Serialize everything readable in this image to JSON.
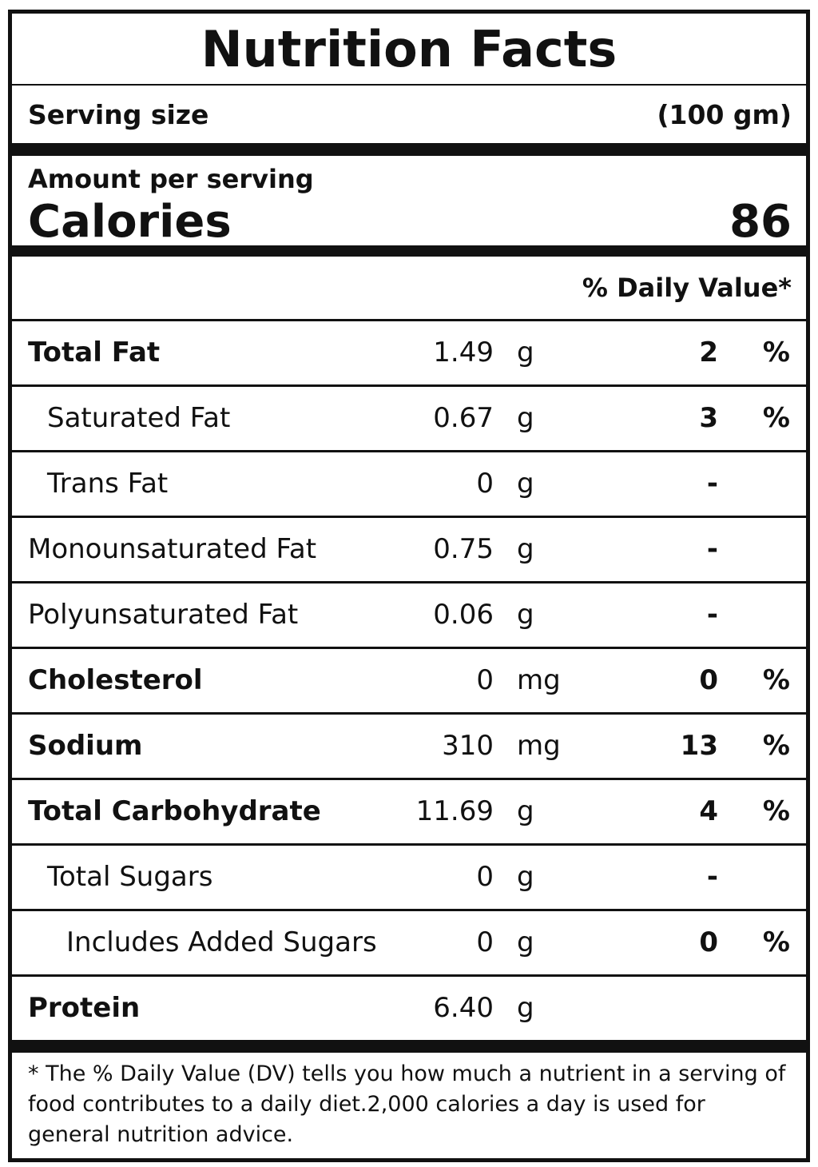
{
  "title": "Nutrition Facts",
  "serving": {
    "label": "Serving size",
    "value": "(100 gm)"
  },
  "amount_per_serving": "Amount per serving",
  "calories": {
    "label": "Calories",
    "value": "86"
  },
  "daily_value_header": "% Daily Value*",
  "nutrients": [
    {
      "name": "Total Fat",
      "amount": "1.49",
      "unit": "g",
      "dv": "2",
      "pct": "%"
    },
    {
      "name": "Saturated Fat",
      "amount": "0.67",
      "unit": "g",
      "dv": "3",
      "pct": "%"
    },
    {
      "name": "Trans Fat",
      "amount": "0",
      "unit": "g",
      "dv": "-",
      "pct": ""
    },
    {
      "name": "Monounsaturated Fat",
      "amount": "0.75",
      "unit": "g",
      "dv": "-",
      "pct": ""
    },
    {
      "name": "Polyunsaturated Fat",
      "amount": "0.06",
      "unit": "g",
      "dv": "-",
      "pct": ""
    },
    {
      "name": "Cholesterol",
      "amount": "0",
      "unit": "mg",
      "dv": "0",
      "pct": "%"
    },
    {
      "name": "Sodium",
      "amount": "310",
      "unit": "mg",
      "dv": "13",
      "pct": "%"
    },
    {
      "name": "Total Carbohydrate",
      "amount": "11.69",
      "unit": "g",
      "dv": "4",
      "pct": "%"
    },
    {
      "name": "Total Sugars",
      "amount": "0",
      "unit": "g",
      "dv": "-",
      "pct": ""
    },
    {
      "name": "Includes Added Sugars",
      "amount": "0",
      "unit": "g",
      "dv": "0",
      "pct": "%"
    },
    {
      "name": "Protein",
      "amount": "6.40",
      "unit": "g",
      "dv": "",
      "pct": ""
    }
  ],
  "footnote": "* The % Daily Value (DV) tells you how much a nutrient in a serving of food contributes to a daily diet.2,000 calories a day is used for general nutrition advice."
}
